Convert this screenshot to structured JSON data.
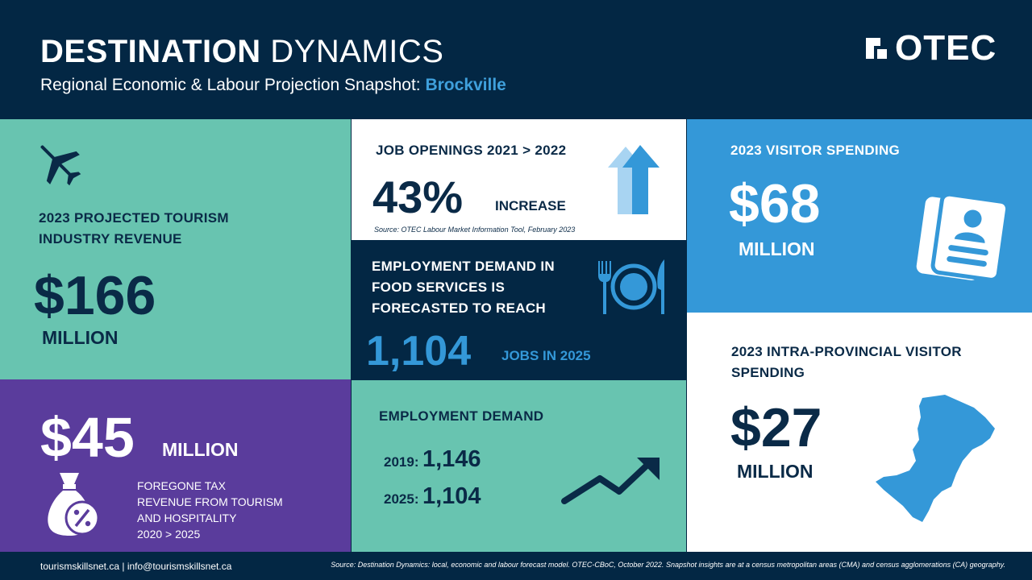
{
  "header": {
    "title_bold": "DESTINATION",
    "title_rest": "DYNAMICS",
    "subtitle": "Regional Economic & Labour Projection Snapshot:",
    "city": "Brockville",
    "logo_text": "OTEC",
    "logo_icon": "otec-bracket-icon"
  },
  "revenue": {
    "icon": "airplane-icon",
    "label_line1": "2023 PROJECTED TOURISM",
    "label_line2": "INDUSTRY REVENUE",
    "value": "$166",
    "unit": "MILLION"
  },
  "tax": {
    "value": "$45",
    "unit": "MILLION",
    "icon": "money-bag-percent-icon",
    "desc_line1": "FOREGONE TAX",
    "desc_line2": "REVENUE FROM TOURISM",
    "desc_line3": "AND HOSPITALITY",
    "desc_line4": "2020 > 2025"
  },
  "jobs": {
    "label": "JOB OPENINGS  2021 > 2022",
    "value": "43%",
    "suffix": "INCREASE",
    "source": "Source: OTEC Labour Market Information Tool, February 2023",
    "icon": "up-arrows-icon"
  },
  "food": {
    "line1": "EMPLOYMENT DEMAND IN",
    "line2": "FOOD SERVICES IS",
    "line3": "FORECASTED TO REACH",
    "value": "1,104",
    "suffix": "JOBS IN 2025",
    "icon": "plate-fork-knife-icon"
  },
  "demand": {
    "label": "EMPLOYMENT DEMAND",
    "rows": [
      {
        "year": "2019:",
        "value": "1,146"
      },
      {
        "year": "2025:",
        "value": "1,104"
      }
    ],
    "icon": "trend-up-arrow-icon"
  },
  "visitor": {
    "label": "2023 VISITOR SPENDING",
    "value": "$68",
    "unit": "MILLION",
    "icon": "id-card-icon"
  },
  "intra": {
    "label_line1": "2023 INTRA-PROVINCIAL VISITOR",
    "label_line2": "SPENDING",
    "value": "$27",
    "unit": "MILLION",
    "icon": "region-map-icon"
  },
  "footer": {
    "contact": "tourismskillsnet.ca  |  info@tourismskillsnet.ca",
    "source": "Source: Destination Dynamics: local, economic and labour forecast model. OTEC-CBoC, October 2022. Snapshot insights are at a census metropolitan areas (CMA) and census agglomerations (CA) geography."
  },
  "colors": {
    "navy": "#032744",
    "teal": "#68c4b0",
    "purple": "#5a3c9c",
    "blue": "#3498d8",
    "accent_blue": "#3fa0dc"
  }
}
